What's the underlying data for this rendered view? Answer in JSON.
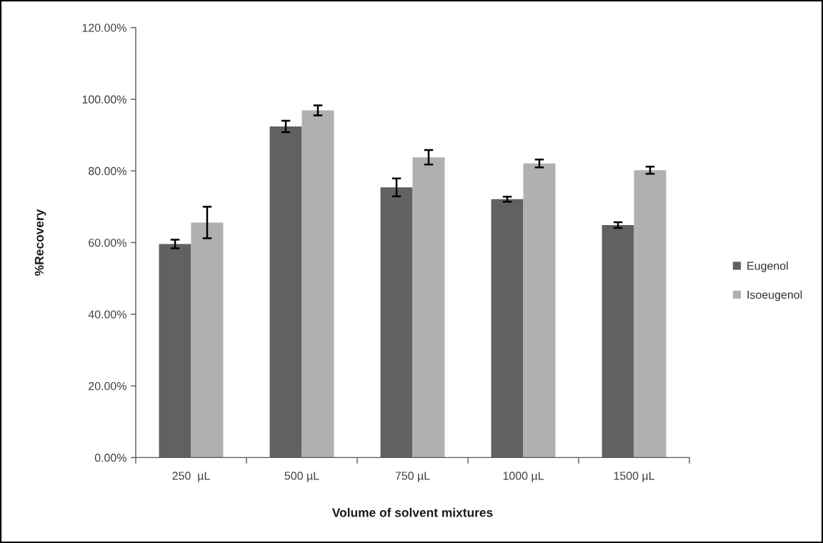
{
  "chart_data": {
    "type": "bar",
    "xlabel": "Volume of solvent mixtures",
    "ylabel": "%Recovery",
    "categories": [
      "250  µL",
      "500 µL",
      "750 µL",
      "1000 µL",
      "1500 µL"
    ],
    "series": [
      {
        "name": "Eugenol",
        "color": "#616161",
        "values": [
          59.6,
          92.4,
          75.4,
          72.1,
          64.9
        ],
        "errors": [
          1.2,
          1.6,
          2.5,
          0.7,
          0.8
        ]
      },
      {
        "name": "Isoeugenol",
        "color": "#b0b0b0",
        "values": [
          65.6,
          96.9,
          83.8,
          82.1,
          80.2
        ],
        "errors": [
          4.4,
          1.4,
          2.0,
          1.1,
          1.0
        ]
      }
    ],
    "ylim": [
      0,
      120
    ],
    "yticks": [
      {
        "value": 0,
        "label": "0.00%"
      },
      {
        "value": 20,
        "label": "20.00%"
      },
      {
        "value": 40,
        "label": "40.00%"
      },
      {
        "value": 60,
        "label": "60.00%"
      },
      {
        "value": 80,
        "label": "80.00%"
      },
      {
        "value": 100,
        "label": "100.00%"
      },
      {
        "value": 120,
        "label": "120.00%"
      }
    ],
    "legend": "right",
    "grid": false
  }
}
